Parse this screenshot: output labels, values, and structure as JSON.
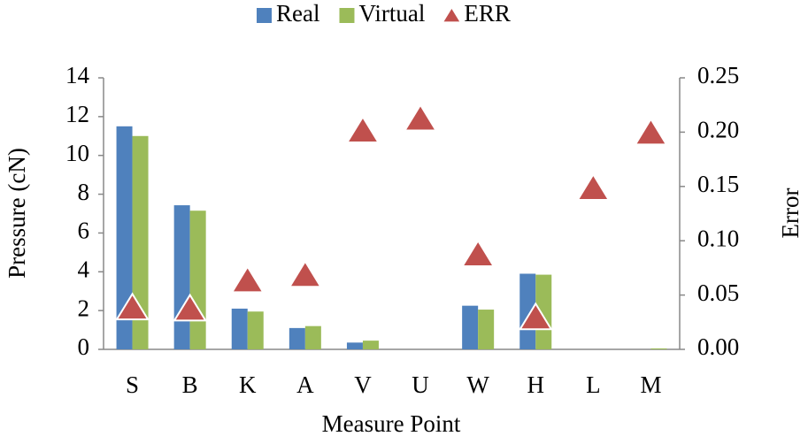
{
  "chart_data": {
    "type": "bar",
    "xlabel": "Measure Point",
    "ylabel": "Pressure (cN)",
    "y2label": "Error",
    "categories": [
      "S",
      "B",
      "K",
      "A",
      "V",
      "U",
      "W",
      "H",
      "L",
      "M"
    ],
    "series": [
      {
        "name": "Real",
        "color": "#4f81bd",
        "values": [
          11.5,
          7.43,
          2.1,
          1.1,
          0.35,
          0,
          2.25,
          3.9,
          0,
          0
        ]
      },
      {
        "name": "Virtual",
        "color": "#9bbb59",
        "values": [
          11.0,
          7.15,
          1.95,
          1.2,
          0.45,
          0,
          2.05,
          3.85,
          0,
          0.05
        ]
      },
      {
        "name": "ERR",
        "type": "scatter",
        "marker": "triangle",
        "axis": "y2",
        "color": "#c0504d",
        "values": [
          0.038,
          0.037,
          0.063,
          0.068,
          0.201,
          0.212,
          0.087,
          0.029,
          0.148,
          0.199
        ]
      }
    ],
    "ylim": [
      0,
      14
    ],
    "yticks": [
      0,
      2,
      4,
      6,
      8,
      10,
      12,
      14
    ],
    "y2lim": [
      0,
      0.25
    ],
    "y2ticks": [
      {
        "value": 0,
        "label": "0.00"
      },
      0.05,
      {
        "value": 0.1,
        "label": "0.10"
      },
      0.15,
      {
        "value": 0.2,
        "label": "0.20"
      },
      0.25
    ],
    "legend": "top"
  }
}
